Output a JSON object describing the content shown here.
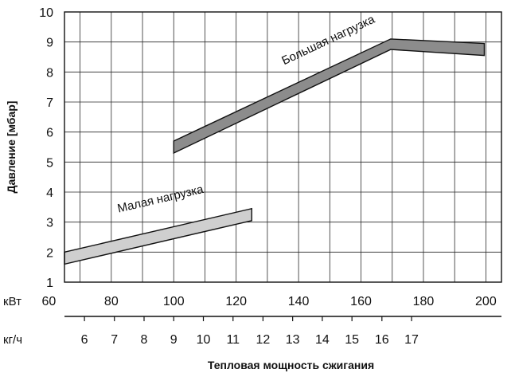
{
  "chart_data": {
    "type": "area",
    "x_unit_label": "кВт",
    "x2_unit_label": "кг/ч",
    "xlabel": "Тепловая мощность сжигания",
    "ylabel": "Давление [мбар]",
    "xlim": [
      65,
      205
    ],
    "ylim": [
      1,
      10
    ],
    "x_ticks": [
      60,
      80,
      100,
      120,
      140,
      160,
      180,
      200
    ],
    "x2_ticks": [
      6,
      7,
      8,
      9,
      10,
      11,
      12,
      13,
      14,
      15,
      16,
      17
    ],
    "x2_tick_positions_kw": [
      71.4,
      81,
      90.5,
      100,
      109.5,
      119,
      128.6,
      138.1,
      147.6,
      157.1,
      166.7,
      176.2
    ],
    "y_ticks": [
      1,
      2,
      3,
      4,
      5,
      6,
      7,
      8,
      9,
      10
    ],
    "grid": true,
    "series": [
      {
        "name": "Большая нагрузка",
        "color": "#8c8c8c",
        "upper": [
          {
            "x": 100,
            "y": 5.7
          },
          {
            "x": 169.5,
            "y": 9.1
          },
          {
            "x": 199.5,
            "y": 8.95
          }
        ],
        "lower": [
          {
            "x": 100,
            "y": 5.3
          },
          {
            "x": 169.5,
            "y": 8.75
          },
          {
            "x": 199.5,
            "y": 8.55
          }
        ],
        "label_x": 150,
        "label_y": 8.95
      },
      {
        "name": "Малая нагрузка",
        "color": "#cfcfcf",
        "upper": [
          {
            "x": 65,
            "y": 2.0
          },
          {
            "x": 125,
            "y": 3.45
          }
        ],
        "lower": [
          {
            "x": 65,
            "y": 1.6
          },
          {
            "x": 125,
            "y": 3.05
          }
        ],
        "label_x": 96,
        "label_y": 3.65
      }
    ]
  }
}
